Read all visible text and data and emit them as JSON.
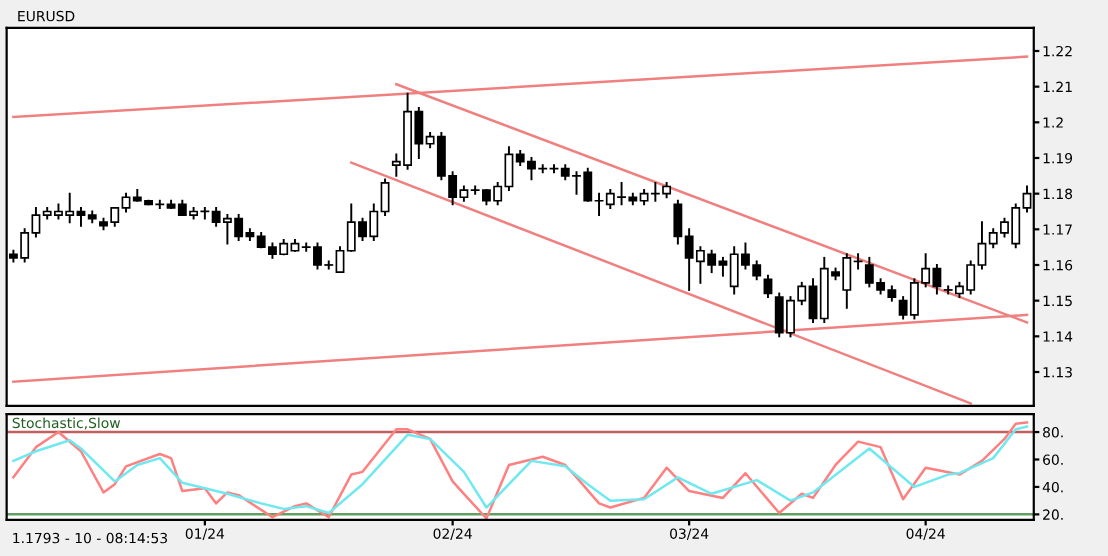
{
  "chart_data": [
    {
      "type": "candlestick",
      "title": "EURUSD",
      "ylim": [
        1.1205,
        1.2265
      ],
      "categories": [
        null,
        null,
        null,
        null,
        null,
        null,
        null,
        null,
        null,
        null,
        null,
        null,
        null,
        null,
        null,
        null,
        null,
        null,
        null,
        null,
        null,
        null,
        null,
        null,
        null,
        null,
        null,
        null,
        null,
        null,
        null,
        null,
        null,
        null,
        null,
        null,
        null,
        null,
        null,
        null,
        null,
        null,
        null,
        null,
        null,
        null,
        null,
        null,
        null,
        null,
        null,
        null,
        null,
        null,
        null,
        null,
        null,
        null,
        null,
        null,
        null,
        null,
        null,
        null,
        null,
        null,
        null,
        null,
        null,
        null,
        null,
        null,
        null,
        null,
        null,
        null,
        null,
        null,
        null,
        null,
        null,
        null,
        null,
        null,
        null,
        null,
        null,
        null,
        null,
        null,
        null
      ],
      "yticks": [
        {
          "value": 1.22,
          "label": "1.22"
        },
        {
          "value": 1.21,
          "label": "1.21"
        },
        {
          "value": 1.2,
          "label": "1.2"
        },
        {
          "value": 1.19,
          "label": "1.19"
        },
        {
          "value": 1.18,
          "label": "1.18"
        },
        {
          "value": 1.17,
          "label": "1.17"
        },
        {
          "value": 1.16,
          "label": "1.16"
        },
        {
          "value": 1.15,
          "label": "1.15"
        },
        {
          "value": 1.14,
          "label": "1.14"
        },
        {
          "value": 1.13,
          "label": "1.13"
        }
      ],
      "tick_labels": "y",
      "grid": false,
      "legend": false,
      "series": [
        {
          "color": "#000000",
          "ohlc": [
            [
              1.163,
              1.164,
              1.161,
              1.162
            ],
            [
              1.162,
              1.17,
              1.161,
              1.169
            ],
            [
              1.169,
              1.176,
              1.168,
              1.174
            ],
            [
              1.174,
              1.176,
              1.173,
              1.175
            ],
            [
              1.174,
              1.177,
              1.173,
              1.175
            ],
            [
              1.174,
              1.18,
              1.172,
              1.175
            ],
            [
              1.175,
              1.176,
              1.171,
              1.174
            ],
            [
              1.174,
              1.175,
              1.172,
              1.173
            ],
            [
              1.172,
              1.173,
              1.17,
              1.171
            ],
            [
              1.172,
              1.176,
              1.171,
              1.176
            ],
            [
              1.176,
              1.18,
              1.175,
              1.179
            ],
            [
              1.179,
              1.181,
              1.178,
              1.178
            ],
            [
              1.178,
              1.178,
              1.177,
              1.177
            ],
            [
              1.177,
              1.178,
              1.176,
              1.177
            ],
            [
              1.177,
              1.178,
              1.176,
              1.176
            ],
            [
              1.177,
              1.178,
              1.174,
              1.174
            ],
            [
              1.174,
              1.176,
              1.173,
              1.175
            ],
            [
              1.175,
              1.176,
              1.173,
              1.175
            ],
            [
              1.175,
              1.176,
              1.171,
              1.172
            ],
            [
              1.172,
              1.174,
              1.166,
              1.173
            ],
            [
              1.173,
              1.174,
              1.167,
              1.168
            ],
            [
              1.169,
              1.17,
              1.167,
              1.168
            ],
            [
              1.168,
              1.169,
              1.165,
              1.165
            ],
            [
              1.165,
              1.166,
              1.162,
              1.163
            ],
            [
              1.163,
              1.167,
              1.163,
              1.166
            ],
            [
              1.164,
              1.167,
              1.164,
              1.166
            ],
            [
              1.165,
              1.166,
              1.164,
              1.165
            ],
            [
              1.165,
              1.166,
              1.159,
              1.16
            ],
            [
              1.16,
              1.161,
              1.159,
              1.16
            ],
            [
              1.158,
              1.165,
              1.158,
              1.164
            ],
            [
              1.164,
              1.177,
              1.164,
              1.172
            ],
            [
              1.172,
              1.173,
              1.167,
              1.168
            ],
            [
              1.168,
              1.177,
              1.167,
              1.175
            ],
            [
              1.175,
              1.184,
              1.174,
              1.183
            ],
            [
              1.188,
              1.191,
              1.185,
              1.189
            ],
            [
              1.188,
              1.208,
              1.187,
              1.203
            ],
            [
              1.203,
              1.204,
              1.19,
              1.194
            ],
            [
              1.194,
              1.197,
              1.193,
              1.196
            ],
            [
              1.196,
              1.197,
              1.184,
              1.185
            ],
            [
              1.185,
              1.186,
              1.177,
              1.179
            ],
            [
              1.179,
              1.182,
              1.178,
              1.181
            ],
            [
              1.181,
              1.182,
              1.18,
              1.181
            ],
            [
              1.181,
              1.181,
              1.177,
              1.178
            ],
            [
              1.178,
              1.183,
              1.177,
              1.182
            ],
            [
              1.182,
              1.193,
              1.181,
              1.191
            ],
            [
              1.191,
              1.192,
              1.188,
              1.189
            ],
            [
              1.189,
              1.19,
              1.184,
              1.187
            ],
            [
              1.187,
              1.188,
              1.186,
              1.187
            ],
            [
              1.187,
              1.188,
              1.186,
              1.187
            ],
            [
              1.187,
              1.188,
              1.184,
              1.185
            ],
            [
              1.185,
              1.186,
              1.18,
              1.185
            ],
            [
              1.186,
              1.187,
              1.178,
              1.178
            ],
            [
              1.178,
              1.18,
              1.174,
              1.178
            ],
            [
              1.177,
              1.181,
              1.176,
              1.18
            ],
            [
              1.179,
              1.183,
              1.177,
              1.179
            ],
            [
              1.179,
              1.18,
              1.177,
              1.178
            ],
            [
              1.178,
              1.181,
              1.177,
              1.18
            ],
            [
              1.18,
              1.183,
              1.178,
              1.18
            ],
            [
              1.18,
              1.183,
              1.179,
              1.182
            ],
            [
              1.177,
              1.178,
              1.166,
              1.168
            ],
            [
              1.168,
              1.17,
              1.153,
              1.162
            ],
            [
              1.161,
              1.165,
              1.155,
              1.164
            ],
            [
              1.163,
              1.164,
              1.158,
              1.16
            ],
            [
              1.161,
              1.162,
              1.157,
              1.16
            ],
            [
              1.154,
              1.165,
              1.152,
              1.163
            ],
            [
              1.163,
              1.166,
              1.159,
              1.16
            ],
            [
              1.16,
              1.161,
              1.156,
              1.157
            ],
            [
              1.156,
              1.157,
              1.151,
              1.152
            ],
            [
              1.151,
              1.152,
              1.14,
              1.141
            ],
            [
              1.141,
              1.151,
              1.14,
              1.15
            ],
            [
              1.15,
              1.155,
              1.149,
              1.154
            ],
            [
              1.154,
              1.156,
              1.144,
              1.145
            ],
            [
              1.145,
              1.162,
              1.144,
              1.159
            ],
            [
              1.158,
              1.159,
              1.156,
              1.157
            ],
            [
              1.153,
              1.163,
              1.148,
              1.162
            ],
            [
              1.161,
              1.163,
              1.159,
              1.161
            ],
            [
              1.16,
              1.162,
              1.154,
              1.155
            ],
            [
              1.155,
              1.156,
              1.152,
              1.153
            ],
            [
              1.153,
              1.154,
              1.15,
              1.151
            ],
            [
              1.15,
              1.151,
              1.145,
              1.146
            ],
            [
              1.146,
              1.156,
              1.145,
              1.155
            ],
            [
              1.155,
              1.163,
              1.154,
              1.159
            ],
            [
              1.159,
              1.16,
              1.152,
              1.154
            ],
            [
              1.153,
              1.154,
              1.152,
              1.153
            ],
            [
              1.152,
              1.155,
              1.151,
              1.154
            ],
            [
              1.153,
              1.161,
              1.152,
              1.16
            ],
            [
              1.16,
              1.172,
              1.159,
              1.166
            ],
            [
              1.166,
              1.17,
              1.165,
              1.169
            ],
            [
              1.169,
              1.173,
              1.168,
              1.172
            ],
            [
              1.166,
              1.177,
              1.165,
              1.176
            ],
            [
              1.176,
              1.182,
              1.175,
              1.18
            ]
          ]
        },
        {
          "type": "line",
          "color": "#f08080",
          "values": [
            1.2015,
            null,
            null,
            null,
            null,
            null,
            null,
            null,
            null,
            null,
            null,
            null,
            null,
            null,
            null,
            null,
            null,
            null,
            null,
            null,
            null,
            null,
            null,
            null,
            null,
            null,
            null,
            null,
            null,
            null,
            null,
            null,
            null,
            null,
            null,
            null,
            null,
            null,
            null,
            null,
            null,
            null,
            null,
            null,
            null,
            null,
            null,
            null,
            null,
            null,
            null,
            null,
            null,
            null,
            null,
            null,
            null,
            null,
            null,
            null,
            null,
            null,
            null,
            null,
            null,
            null,
            null,
            null,
            null,
            null,
            null,
            null,
            null,
            null,
            null,
            null,
            null,
            null,
            null,
            null,
            null,
            null,
            null,
            null,
            null,
            null,
            null,
            null,
            null,
            null,
            1.2184
          ]
        },
        {
          "type": "line",
          "color": "#f08080",
          "values": [
            1.1273,
            null,
            null,
            null,
            null,
            null,
            null,
            null,
            null,
            null,
            null,
            null,
            null,
            null,
            null,
            null,
            null,
            null,
            null,
            null,
            null,
            null,
            null,
            null,
            null,
            null,
            null,
            null,
            null,
            null,
            null,
            null,
            null,
            null,
            null,
            null,
            null,
            null,
            null,
            null,
            null,
            null,
            null,
            null,
            null,
            null,
            null,
            null,
            null,
            null,
            null,
            null,
            null,
            null,
            null,
            null,
            null,
            null,
            null,
            null,
            null,
            null,
            null,
            null,
            null,
            null,
            null,
            null,
            null,
            null,
            null,
            null,
            null,
            null,
            null,
            null,
            null,
            null,
            null,
            null,
            null,
            null,
            null,
            null,
            null,
            null,
            null,
            null,
            null,
            null,
            1.146
          ]
        },
        {
          "type": "line",
          "color": "#f08080",
          "values": [
            null,
            null,
            null,
            null,
            null,
            null,
            null,
            null,
            null,
            null,
            null,
            null,
            null,
            null,
            null,
            null,
            null,
            null,
            null,
            null,
            null,
            null,
            null,
            null,
            null,
            null,
            null,
            null,
            null,
            null,
            null,
            null,
            null,
            null,
            1.2107,
            null,
            null,
            null,
            null,
            null,
            null,
            null,
            null,
            null,
            null,
            null,
            null,
            null,
            null,
            null,
            null,
            null,
            null,
            null,
            null,
            null,
            null,
            null,
            null,
            null,
            null,
            null,
            null,
            null,
            null,
            null,
            null,
            null,
            null,
            null,
            null,
            null,
            null,
            null,
            null,
            null,
            null,
            null,
            null,
            null,
            null,
            null,
            null,
            null,
            null,
            null,
            null,
            null,
            null,
            null,
            1.1439
          ]
        },
        {
          "type": "line",
          "color": "#f08080",
          "values": [
            null,
            null,
            null,
            null,
            null,
            null,
            null,
            null,
            null,
            null,
            null,
            null,
            null,
            null,
            null,
            null,
            null,
            null,
            null,
            null,
            null,
            null,
            null,
            null,
            null,
            null,
            null,
            null,
            null,
            null,
            1.1887,
            null,
            null,
            null,
            null,
            null,
            null,
            null,
            null,
            null,
            null,
            null,
            null,
            null,
            null,
            null,
            null,
            null,
            null,
            null,
            null,
            null,
            null,
            null,
            null,
            null,
            null,
            null,
            null,
            null,
            null,
            null,
            null,
            null,
            null,
            null,
            null,
            null,
            null,
            null,
            null,
            null,
            null,
            null,
            null,
            null,
            null,
            null,
            null,
            null,
            null,
            null,
            null,
            null,
            null,
            1.1212,
            null,
            null,
            null,
            null,
            null
          ]
        }
      ]
    },
    {
      "type": "line",
      "title": "Stochastic,Slow",
      "ylim": [
        16,
        93
      ],
      "categories": [
        null,
        null,
        null,
        null,
        null,
        null,
        null,
        null,
        null,
        null,
        null,
        null,
        null,
        null,
        null,
        null,
        null,
        "01/24",
        null,
        null,
        null,
        null,
        null,
        null,
        null,
        null,
        null,
        null,
        null,
        null,
        null,
        null,
        null,
        null,
        null,
        null,
        null,
        null,
        null,
        "02/24",
        null,
        null,
        null,
        null,
        null,
        null,
        null,
        null,
        null,
        null,
        null,
        null,
        null,
        null,
        null,
        null,
        null,
        null,
        null,
        null,
        "03/24",
        null,
        null,
        null,
        null,
        null,
        null,
        null,
        null,
        null,
        null,
        null,
        null,
        null,
        null,
        null,
        null,
        null,
        null,
        null,
        null,
        "04/24",
        null,
        null,
        null,
        null,
        null,
        null,
        null,
        null,
        null
      ],
      "yticks": [
        {
          "value": 80,
          "label": "80."
        },
        {
          "value": 60,
          "label": "60."
        },
        {
          "value": 40,
          "label": "40."
        },
        {
          "value": 20,
          "label": "20."
        }
      ],
      "grid": false,
      "legend": false,
      "ref_lines": [
        {
          "axis": "y",
          "value": 80,
          "color": "#c06060"
        },
        {
          "axis": "y",
          "value": 20,
          "color": "#60a060"
        }
      ],
      "annotations": [
        "1.1793 - 10 - 08:14:53"
      ],
      "series": [
        {
          "color": "#ff8080",
          "values": [
            47,
            null,
            69,
            null,
            80,
            null,
            66,
            null,
            36,
            42,
            55,
            null,
            null,
            64,
            61,
            37,
            null,
            39,
            28,
            36,
            34,
            null,
            null,
            18,
            null,
            26,
            28,
            null,
            18,
            null,
            49,
            51,
            null,
            null,
            82,
            82,
            null,
            75,
            null,
            44,
            35,
            null,
            17,
            null,
            56,
            null,
            null,
            62,
            null,
            56,
            47,
            null,
            28,
            25,
            null,
            null,
            32,
            null,
            54,
            null,
            37,
            null,
            null,
            32,
            null,
            50,
            null,
            null,
            21,
            null,
            35,
            32,
            null,
            56,
            null,
            73,
            null,
            69,
            null,
            31,
            null,
            54,
            null,
            null,
            49,
            null,
            59,
            null,
            75,
            86,
            87
          ]
        },
        {
          "color": "#70e8f0",
          "values": [
            59,
            null,
            66,
            null,
            null,
            74,
            68,
            null,
            null,
            44,
            null,
            56,
            null,
            61,
            null,
            43,
            null,
            null,
            null,
            35,
            null,
            null,
            28,
            null,
            24,
            null,
            26,
            null,
            21,
            null,
            null,
            42,
            null,
            null,
            null,
            78,
            null,
            75,
            null,
            null,
            51,
            null,
            25,
            null,
            null,
            null,
            59,
            null,
            null,
            55,
            null,
            42,
            null,
            30,
            null,
            null,
            31,
            null,
            null,
            47,
            null,
            null,
            35,
            null,
            null,
            null,
            45,
            null,
            null,
            30,
            null,
            36,
            null,
            null,
            null,
            null,
            68,
            null,
            null,
            null,
            40,
            null,
            null,
            49,
            50,
            null,
            null,
            61,
            null,
            82,
            84
          ]
        }
      ]
    }
  ]
}
